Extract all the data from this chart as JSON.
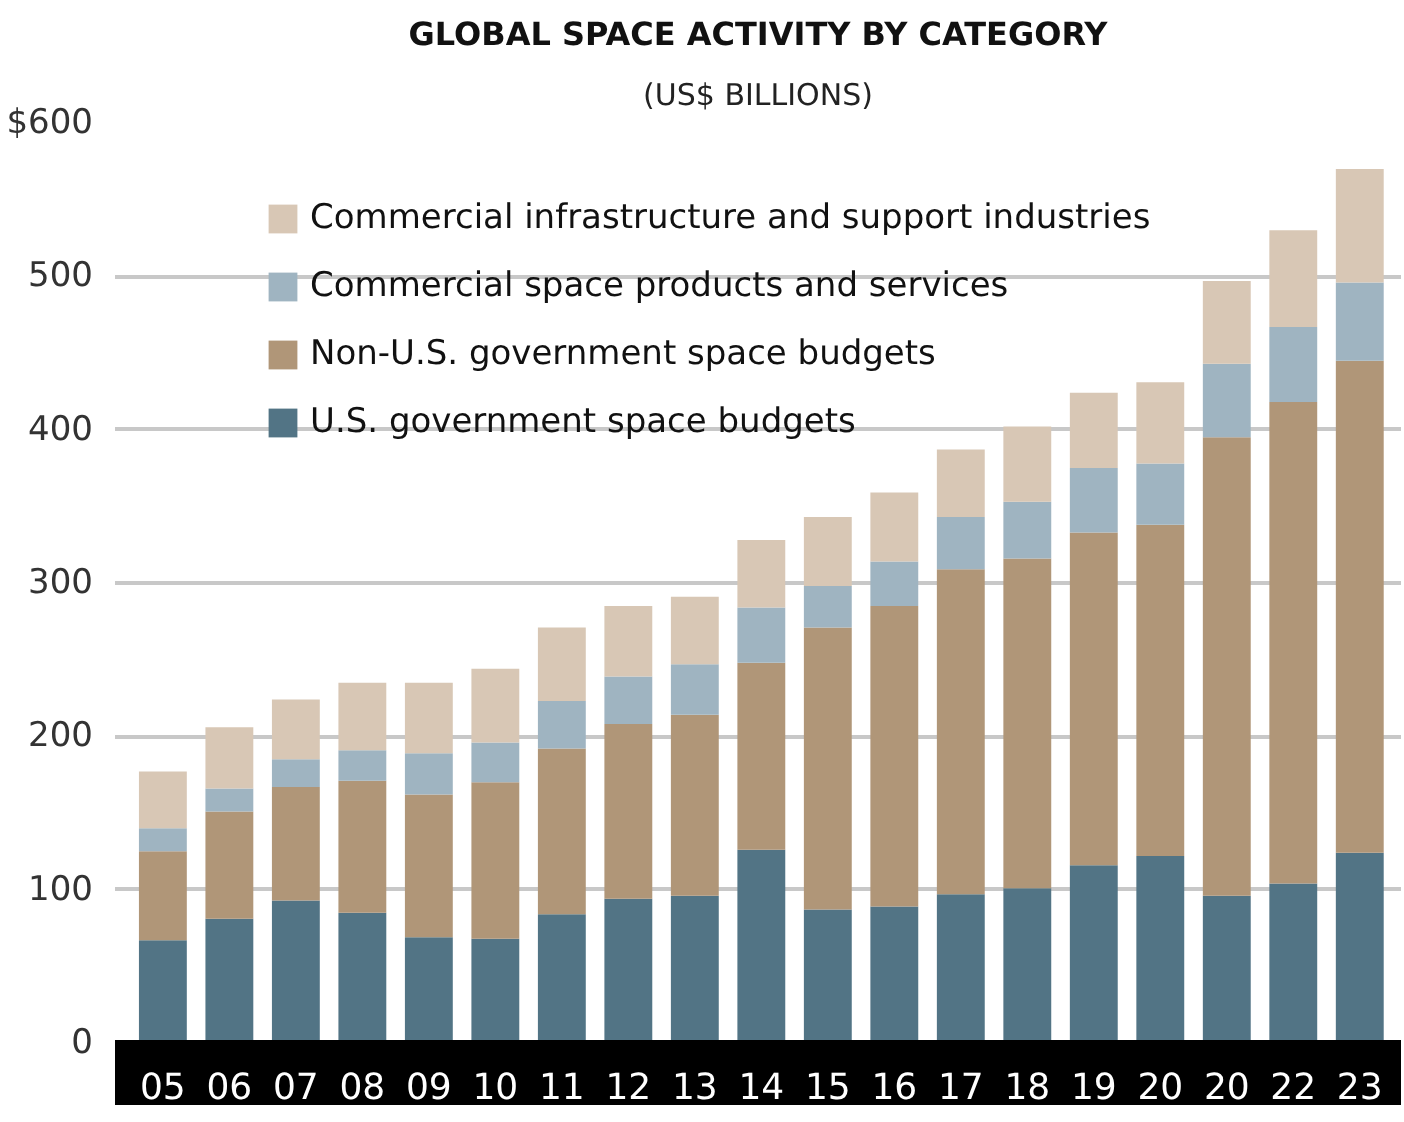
{
  "chart_data": {
    "type": "bar",
    "stacked": true,
    "title": "GLOBAL SPACE ACTIVITY BY CATEGORY",
    "subtitle": "(US$ BILLIONS)",
    "categories": [
      "05",
      "06",
      "07",
      "08",
      "09",
      "10",
      "11",
      "12",
      "13",
      "14",
      "15",
      "16",
      "17",
      "18",
      "19",
      "20",
      "20",
      "22",
      "23"
    ],
    "series": [
      {
        "name": "U.S. government space budgets",
        "color": "#527485",
        "values": [
          67,
          81,
          93,
          85,
          69,
          68,
          84,
          94,
          96,
          126,
          87,
          89,
          97,
          101,
          116,
          122,
          96,
          104,
          124
        ]
      },
      {
        "name": "Non-U.S. government space budgets",
        "color": "#b09678",
        "values": [
          58,
          70,
          74,
          86,
          93,
          102,
          108,
          114,
          118,
          122,
          184,
          196,
          212,
          215,
          217,
          216,
          299,
          314,
          321
        ]
      },
      {
        "name": "Commercial space products and services",
        "color": "#9fb4c1",
        "values": [
          15,
          15,
          18,
          20,
          27,
          26,
          31,
          31,
          33,
          36,
          27,
          29,
          34,
          37,
          42,
          40,
          48,
          49,
          51
        ]
      },
      {
        "name": "Commercial infrastructure and support industries",
        "color": "#d8c7b5",
        "values": [
          37,
          40,
          39,
          44,
          46,
          48,
          48,
          46,
          44,
          44,
          45,
          45,
          44,
          49,
          49,
          53,
          54,
          63,
          74
        ]
      }
    ],
    "ylim": [
      0,
      600
    ],
    "yticks": [
      0,
      100,
      200,
      300,
      400,
      500,
      {
        "value": 600,
        "label": "$600"
      }
    ],
    "grid": "y",
    "legend": "top left"
  }
}
